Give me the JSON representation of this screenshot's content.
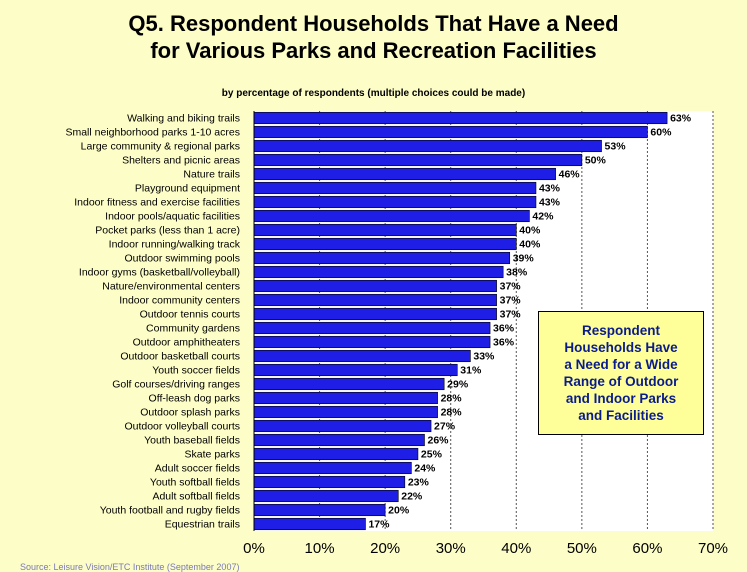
{
  "chart_data": {
    "type": "bar",
    "orientation": "horizontal",
    "title": "Q5. Respondent Households That Have a Need for Various Parks and Recreation Facilities",
    "title_lines": [
      "Q5. Respondent Households That Have a Need",
      "for Various Parks and Recreation Facilities"
    ],
    "subtitle": "by percentage of respondents (multiple choices could be made)",
    "categories": [
      "Walking and biking trails",
      "Small neighborhood parks 1-10 acres",
      "Large community & regional parks",
      "Shelters and picnic areas",
      "Nature trails",
      "Playground equipment",
      "Indoor fitness and exercise facilities",
      "Indoor pools/aquatic facilities",
      "Pocket parks (less than 1 acre)",
      "Indoor running/walking track",
      "Outdoor swimming pools",
      "Indoor gyms (basketball/volleyball)",
      "Nature/environmental centers",
      "Indoor community centers",
      "Outdoor tennis courts",
      "Community gardens",
      "Outdoor amphitheaters",
      "Outdoor basketball courts",
      "Youth soccer fields",
      "Golf courses/driving ranges",
      "Off-leash dog parks",
      "Outdoor splash parks",
      "Outdoor volleyball courts",
      "Youth baseball fields",
      "Skate parks",
      "Adult soccer fields",
      "Youth softball fields",
      "Adult softball fields",
      "Youth football and rugby fields",
      "Equestrian trails"
    ],
    "values": [
      63,
      60,
      53,
      50,
      46,
      43,
      43,
      42,
      40,
      40,
      39,
      38,
      37,
      37,
      37,
      36,
      36,
      33,
      31,
      29,
      28,
      28,
      27,
      26,
      25,
      24,
      23,
      22,
      20,
      17
    ],
    "value_labels": [
      "63%",
      "60%",
      "53%",
      "50%",
      "46%",
      "43%",
      "43%",
      "42%",
      "40%",
      "40%",
      "39%",
      "38%",
      "37%",
      "37%",
      "37%",
      "36%",
      "36%",
      "33%",
      "31%",
      "29%",
      "28%",
      "28%",
      "27%",
      "26%",
      "25%",
      "24%",
      "23%",
      "22%",
      "20%",
      "17%"
    ],
    "x_ticks": [
      "0%",
      "10%",
      "20%",
      "30%",
      "40%",
      "50%",
      "60%",
      "70%"
    ],
    "xlim": [
      0,
      70
    ],
    "grid": "vertical dotted",
    "bar_color": "#1e1ee6",
    "plot_bg": "#ffffff",
    "page_bg": "#fdfdc8"
  },
  "callout": {
    "text": "Respondent\nHouseholds Have\na Need for a Wide\nRange of Outdoor\nand Indoor Parks\nand Facilities",
    "text_color": "#0a1c8c",
    "bg": "#ffff99"
  },
  "footer": {
    "text": "Source: Leisure Vision/ETC Institute (September 2007)"
  }
}
